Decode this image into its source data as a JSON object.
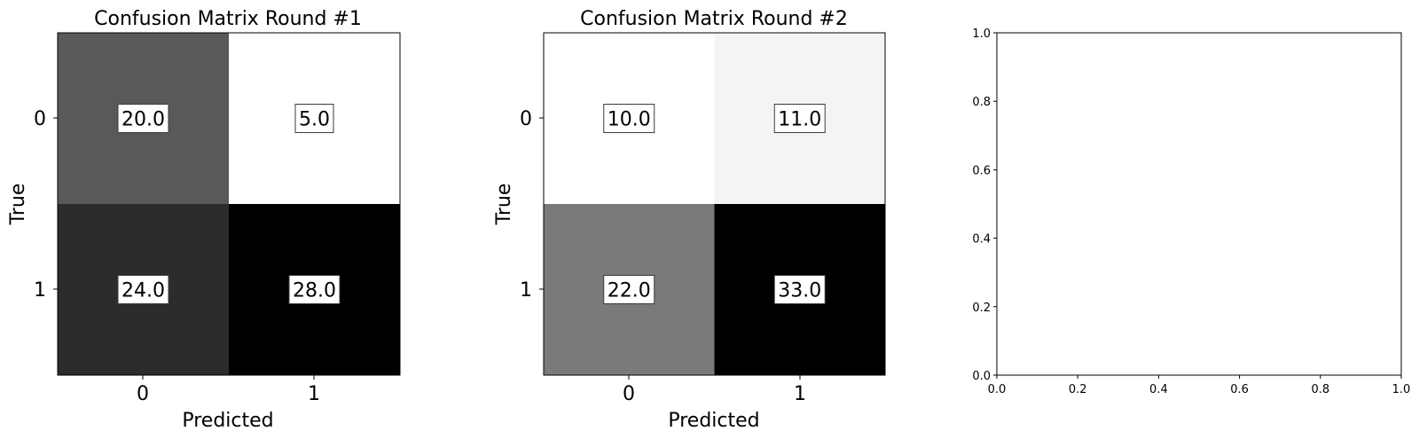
{
  "chart_data": [
    {
      "type": "heatmap",
      "title": "Confusion Matrix Round #1",
      "xlabel": "Predicted",
      "ylabel": "True",
      "x_categories": [
        "0",
        "1"
      ],
      "y_categories": [
        "0",
        "1"
      ],
      "values": [
        [
          20.0,
          5.0
        ],
        [
          24.0,
          28.0
        ]
      ],
      "cell_labels": [
        [
          "20.0",
          "5.0"
        ],
        [
          "24.0",
          "28.0"
        ]
      ],
      "colormap": "gray_r",
      "vmin": 5.0,
      "vmax": 28.0
    },
    {
      "type": "heatmap",
      "title": "Confusion Matrix Round #2",
      "xlabel": "Predicted",
      "ylabel": "True",
      "x_categories": [
        "0",
        "1"
      ],
      "y_categories": [
        "0",
        "1"
      ],
      "values": [
        [
          10.0,
          11.0
        ],
        [
          22.0,
          33.0
        ]
      ],
      "cell_labels": [
        [
          "10.0",
          "11.0"
        ],
        [
          "22.0",
          "33.0"
        ]
      ],
      "colormap": "gray_r",
      "vmin": 10.0,
      "vmax": 33.0
    },
    {
      "type": "line",
      "title": "",
      "xlabel": "",
      "ylabel": "",
      "series": [],
      "xlim": [
        0.0,
        1.0
      ],
      "ylim": [
        0.0,
        1.0
      ],
      "x_ticks": [
        "0.0",
        "0.2",
        "0.4",
        "0.6",
        "0.8",
        "1.0"
      ],
      "y_ticks": [
        "0.0",
        "0.2",
        "0.4",
        "0.6",
        "0.8",
        "1.0"
      ]
    }
  ]
}
